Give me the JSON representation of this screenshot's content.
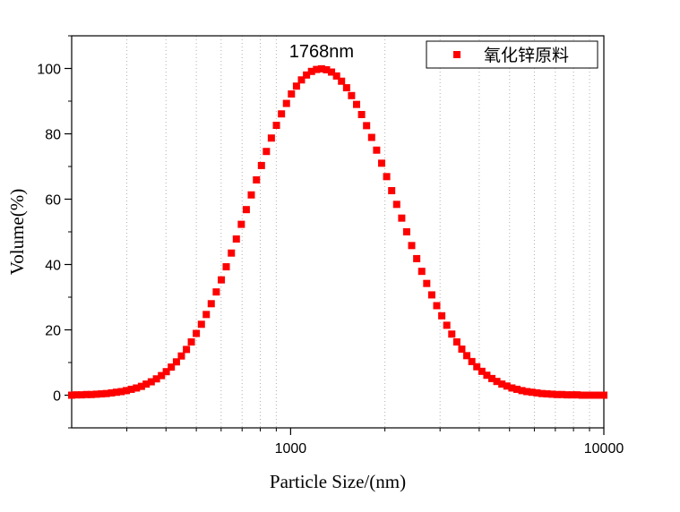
{
  "chart_data": {
    "type": "scatter",
    "xlabel": "Particle Size/(nm)",
    "ylabel": "Volume(%)",
    "x_scale": "log",
    "xlim": [
      200,
      10000
    ],
    "ylim": [
      -10,
      110
    ],
    "x_major_ticks": [
      1000,
      10000
    ],
    "x_tick_labels": [
      "1000",
      "10000"
    ],
    "y_ticks": [
      0,
      20,
      40,
      60,
      80,
      100
    ],
    "y_tick_labels": [
      "0",
      "20",
      "40",
      "60",
      "80",
      "100"
    ],
    "grid": "vertical dotted at minor x ticks",
    "legend_position": "top-right",
    "annotation": "1768nm",
    "series": [
      {
        "name": "氧化锌原料",
        "color": "#ff0000",
        "marker": "square",
        "x": [
          200,
          207,
          215,
          223,
          231,
          240,
          249,
          258,
          268,
          278,
          288,
          299,
          310,
          322,
          334,
          346,
          359,
          373,
          387,
          401,
          416,
          432,
          448,
          465,
          482,
          500,
          519,
          538,
          558,
          579,
          601,
          623,
          647,
          671,
          696,
          722,
          749,
          778,
          807,
          837,
          868,
          901,
          935,
          970,
          1006,
          1044,
          1083,
          1124,
          1166,
          1210,
          1255,
          1302,
          1351,
          1402,
          1454,
          1509,
          1565,
          1624,
          1685,
          1748,
          1814,
          1882,
          1953,
          2026,
          2102,
          2181,
          2263,
          2347,
          2435,
          2527,
          2622,
          2720,
          2822,
          2928,
          3038,
          3152,
          3270,
          3393,
          3520,
          3652,
          3789,
          3931,
          4079,
          4232,
          4391,
          4555,
          4726,
          4904,
          5088,
          5279,
          5477,
          5682,
          5895,
          6117,
          6346,
          6584,
          6831,
          7088,
          7354,
          7629,
          7916,
          8213,
          8521,
          8840,
          9172,
          9516,
          9873,
          10000
        ],
        "y": [
          0.0,
          0.1,
          0.1,
          0.2,
          0.2,
          0.3,
          0.4,
          0.5,
          0.7,
          0.9,
          1.1,
          1.4,
          1.8,
          2.2,
          2.7,
          3.4,
          4.1,
          5.0,
          6.0,
          7.2,
          8.6,
          10.2,
          12.0,
          14.0,
          16.3,
          18.9,
          21.7,
          24.7,
          28.0,
          31.6,
          35.3,
          39.3,
          43.5,
          47.8,
          52.3,
          56.8,
          61.3,
          65.9,
          70.3,
          74.6,
          78.7,
          82.6,
          86.1,
          89.3,
          92.2,
          94.6,
          96.5,
          98.0,
          99.1,
          99.7,
          99.9,
          99.6,
          98.9,
          97.7,
          96.1,
          94.1,
          91.7,
          89.0,
          85.9,
          82.5,
          78.9,
          75.0,
          71.0,
          66.9,
          62.6,
          58.4,
          54.2,
          50.0,
          45.8,
          41.8,
          37.9,
          34.2,
          30.7,
          27.4,
          24.3,
          21.4,
          18.7,
          16.3,
          14.1,
          12.1,
          10.3,
          8.7,
          7.3,
          6.1,
          5.1,
          4.2,
          3.4,
          2.8,
          2.2,
          1.8,
          1.4,
          1.1,
          0.9,
          0.7,
          0.5,
          0.4,
          0.3,
          0.2,
          0.2,
          0.1,
          0.1,
          0.1,
          0.0,
          0.0,
          0.0,
          0.0,
          0.0,
          0.0
        ]
      }
    ]
  }
}
